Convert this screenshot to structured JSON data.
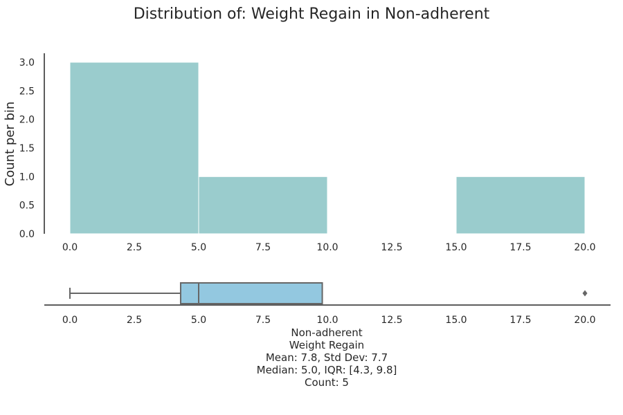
{
  "title": "Distribution of: Weight Regain in Non-adherent",
  "chart_data": [
    {
      "type": "histogram",
      "title": "Distribution of: Weight Regain in Non-adherent",
      "ylabel": "Count per bin",
      "xlabel": "",
      "bins": [
        {
          "start": 0,
          "end": 5,
          "count": 3
        },
        {
          "start": 5,
          "end": 10,
          "count": 1
        },
        {
          "start": 10,
          "end": 15,
          "count": 0
        },
        {
          "start": 15,
          "end": 20,
          "count": 1
        }
      ],
      "xlim": [
        -1,
        21
      ],
      "ylim": [
        0,
        3.15
      ],
      "xticks": [
        "0.0",
        "2.5",
        "5.0",
        "7.5",
        "10.0",
        "12.5",
        "15.0",
        "17.5",
        "20.0"
      ],
      "yticks": [
        "0.0",
        "0.5",
        "1.0",
        "1.5",
        "2.0",
        "2.5",
        "3.0"
      ],
      "bar_color": "#9acccd",
      "grid": false
    },
    {
      "type": "boxplot",
      "min": 0.0,
      "q1": 4.3,
      "median": 5.0,
      "q3": 9.8,
      "whisker_high": 9.8,
      "outliers": [
        20.0
      ],
      "xlim": [
        -1,
        21
      ],
      "xticks": [
        "0.0",
        "2.5",
        "5.0",
        "7.5",
        "10.0",
        "12.5",
        "15.0",
        "17.5",
        "20.0"
      ],
      "box_color": "#93c8e0",
      "line_color": "#666666"
    }
  ],
  "stats": {
    "group": "Non-adherent",
    "variable": "Weight Regain",
    "mean_sd": "Mean: 7.8, Std Dev: 7.7",
    "median_iqr": "Median: 5.0, IQR: [4.3, 9.8]",
    "count": "Count: 5"
  }
}
